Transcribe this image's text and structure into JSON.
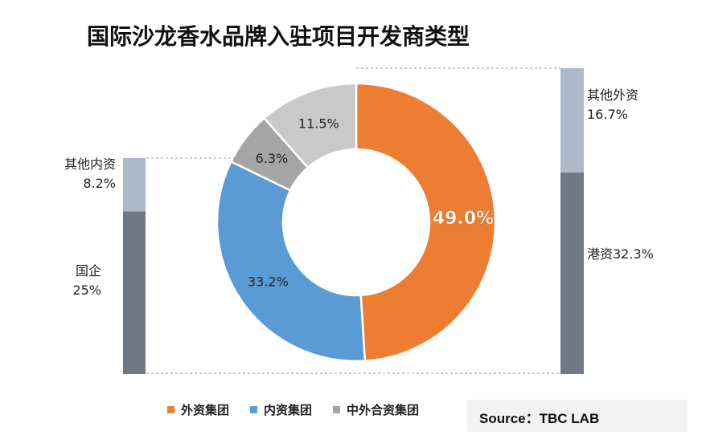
{
  "title": "国际沙龙香水品牌入驻项目开发商类型",
  "source": "Source：TBC LAB",
  "chart_data": [
    {
      "type": "pie",
      "style": "donut",
      "title": "国际沙龙香水品牌入驻项目开发商类型",
      "slices": [
        {
          "name": "外资集团",
          "value": 49.0,
          "label": "49.0%",
          "color": "#ed7d31"
        },
        {
          "name": "内资集团",
          "value": 33.2,
          "label": "33.2%",
          "color": "#5b9bd5"
        },
        {
          "name": "中外合资集团",
          "value": 6.3,
          "label": "6.3%",
          "color": "#a5a5a5"
        },
        {
          "name": "",
          "value": 11.5,
          "label": "11.5%",
          "color": "#c9c9c9"
        }
      ]
    },
    {
      "type": "bar",
      "stacked": true,
      "title": "",
      "breakdown_of": "内资集团",
      "segments": [
        {
          "name": "国企",
          "value": 25,
          "label": "25%",
          "color": "#717986"
        },
        {
          "name": "其他内资",
          "value": 8.2,
          "label": "8.2%",
          "color": "#adb9ca"
        }
      ]
    },
    {
      "type": "bar",
      "stacked": true,
      "title": "",
      "breakdown_of": "外资集团",
      "segments": [
        {
          "name": "港资",
          "value": 32.3,
          "label": "32.3%",
          "color": "#717986"
        },
        {
          "name": "其他外资",
          "value": 16.7,
          "label": "16.7%",
          "color": "#adb9ca"
        }
      ]
    }
  ],
  "legend": [
    {
      "name": "外资集团",
      "color": "#ed7d31"
    },
    {
      "name": "内资集团",
      "color": "#5b9bd5"
    },
    {
      "name": "中外合资集团",
      "color": "#a5a5a5"
    }
  ]
}
